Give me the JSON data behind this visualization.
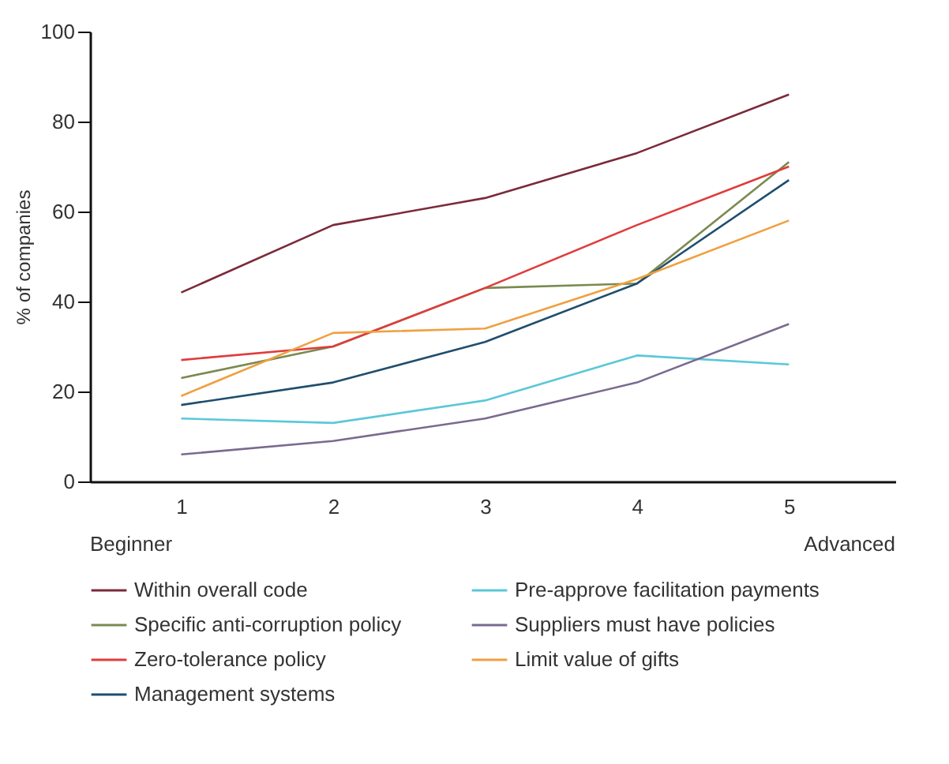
{
  "chart_data": {
    "type": "line",
    "ylabel": "% of companies",
    "x": [
      1,
      2,
      3,
      4,
      5
    ],
    "xlim": [
      0.4,
      5.7
    ],
    "xticks": [
      1,
      2,
      3,
      4,
      5
    ],
    "ylim": [
      0,
      100
    ],
    "yticks": [
      0,
      20,
      40,
      60,
      80,
      100
    ],
    "grid": false,
    "legend": "bottom",
    "marker": "none",
    "line_style": "solid",
    "annotations": [
      "Beginner",
      "Advanced"
    ],
    "series": [
      {
        "name": "Within overall code",
        "color": "#7b2a3a",
        "values": [
          42,
          57,
          63,
          73,
          86
        ]
      },
      {
        "name": "Specific anti-corruption policy",
        "color": "#7a8a50",
        "values": [
          23,
          30,
          43,
          44,
          71
        ]
      },
      {
        "name": "Zero-tolerance policy",
        "color": "#e03c3c",
        "values": [
          27,
          30,
          43,
          57,
          70
        ]
      },
      {
        "name": "Management systems",
        "color": "#1f4e6e",
        "values": [
          17,
          22,
          31,
          44,
          67
        ]
      },
      {
        "name": "Pre-approve facilitation payments",
        "color": "#5bc8d8",
        "values": [
          14,
          13,
          18,
          28,
          26
        ]
      },
      {
        "name": "Suppliers must have policies",
        "color": "#7a6a90",
        "values": [
          6,
          9,
          14,
          22,
          35
        ]
      },
      {
        "name": "Limit value of gifts",
        "color": "#f0a040",
        "values": [
          19,
          33,
          34,
          45,
          58
        ]
      }
    ]
  }
}
